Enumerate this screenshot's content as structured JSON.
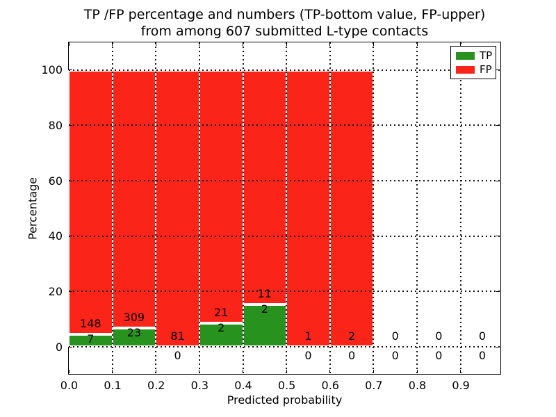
{
  "title": {
    "line1": "TP /FP percentage and numbers (TP-bottom value, FP-upper)",
    "line2": "from among 607 submitted L-type contacts"
  },
  "axes": {
    "ylabel": "Percentage",
    "xlabel": "Predicted probability"
  },
  "legend": {
    "items": [
      {
        "label": "TP",
        "color": "#27921e"
      },
      {
        "label": "FP",
        "color": "#fa2419"
      }
    ]
  },
  "colors": {
    "tp_green": "#27921e",
    "fp_red": "#fa2419",
    "grid": "#111111",
    "spine": "#000000",
    "background": "#ffffff"
  },
  "chart_data": {
    "type": "bar",
    "stacking": "percentage_stacked",
    "title": "TP /FP percentage and numbers (TP-bottom value, FP-upper) from among 607 submitted L-type contacts",
    "xlabel": "Predicted probability",
    "ylabel": "Percentage",
    "grid": "dotted",
    "legend_position": "upper right",
    "total_contacts_in_title": 607,
    "bin_width": 0.1,
    "bin_starts": [
      0.0,
      0.1,
      0.2,
      0.3,
      0.4,
      0.5,
      0.6,
      0.7,
      0.8,
      0.9
    ],
    "xtick_labels": [
      "0.0",
      "0.1",
      "0.2",
      "0.3",
      "0.4",
      "0.5",
      "0.6",
      "0.7",
      "0.8",
      "0.9"
    ],
    "ytick_values": [
      0,
      20,
      40,
      60,
      80,
      100
    ],
    "ytick_labels": [
      "0",
      "20",
      "40",
      "60",
      "80",
      "100"
    ],
    "xlim": [
      0.0,
      0.99
    ],
    "ylim": [
      -9.5,
      110
    ],
    "series": [
      {
        "name": "TP",
        "color": "#27921e",
        "counts": [
          7,
          23,
          0,
          2,
          2,
          0,
          0,
          0,
          0,
          0
        ]
      },
      {
        "name": "FP",
        "color": "#fa2419",
        "counts": [
          148,
          309,
          81,
          21,
          11,
          1,
          2,
          0,
          0,
          0
        ]
      }
    ],
    "tp_percent_of_bin": [
      4.5,
      6.9,
      0.0,
      8.7,
      15.4,
      0.0,
      0.0,
      0.0,
      0.0,
      0.0
    ]
  }
}
